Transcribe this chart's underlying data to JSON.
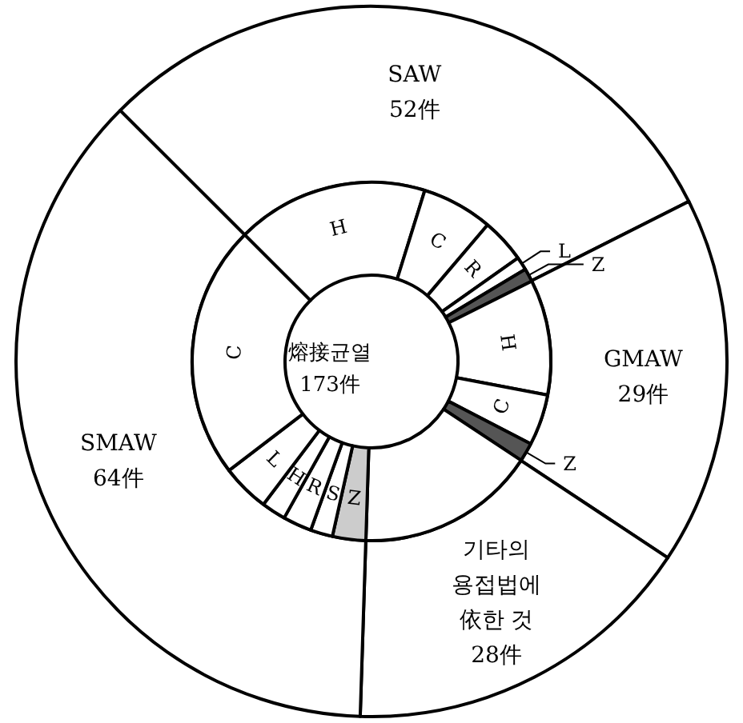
{
  "chart_data": [
    {
      "type": "donut",
      "categories": [
        "SAW",
        "GMAW",
        "기타의 용접법에 依한 것",
        "SMAW"
      ],
      "values": [
        52,
        29,
        28,
        64
      ],
      "value_labels": [
        "52件",
        "29件",
        "28件",
        "64件"
      ],
      "colors": [
        "#ffffff",
        "#ffffff",
        "#ffffff",
        "#ffffff"
      ]
    },
    {
      "type": "donut",
      "title": "熔接균열",
      "annotations": [
        "173件"
      ],
      "categories": [
        "H",
        "C",
        "R",
        "L",
        "Z",
        "H",
        "C",
        "Z",
        null,
        "Z",
        "S",
        "R",
        "H",
        "L",
        "C"
      ],
      "values": [
        17.3,
        6.4,
        4.0,
        1.2,
        1.2,
        10.4,
        4.6,
        1.7,
        16.2,
        3.0,
        2.0,
        2.6,
        2.2,
        4.3,
        22.9
      ],
      "colors": [
        "#ffffff",
        "#ffffff",
        "#ffffff",
        "#ffffff",
        "#555555",
        "#ffffff",
        "#ffffff",
        "#555555",
        "#ffffff",
        "#cccccc",
        "#ffffff",
        "#ffffff",
        "#ffffff",
        "#ffffff",
        "#ffffff"
      ]
    }
  ]
}
